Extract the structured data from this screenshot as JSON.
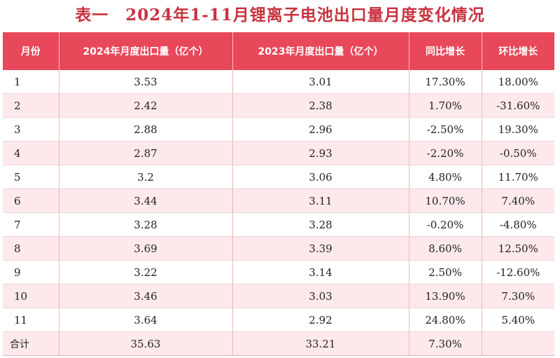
{
  "chart_data": {
    "type": "table",
    "title": "表一　2024年1-11月锂离子电池出口量月度变化情况",
    "columns": [
      "月份",
      "2024年月度出口量（亿个）",
      "2023年月度出口量（亿个）",
      "同比增长",
      "环比增长"
    ],
    "rows": [
      [
        "1",
        "3.53",
        "3.01",
        "17.30%",
        "18.00%"
      ],
      [
        "2",
        "2.42",
        "2.38",
        "1.70%",
        "-31.60%"
      ],
      [
        "3",
        "2.88",
        "2.96",
        "-2.50%",
        "19.30%"
      ],
      [
        "4",
        "2.87",
        "2.93",
        "-2.20%",
        "-0.50%"
      ],
      [
        "5",
        "3.2",
        "3.06",
        "4.80%",
        "11.70%"
      ],
      [
        "6",
        "3.44",
        "3.11",
        "10.70%",
        "7.40%"
      ],
      [
        "7",
        "3.28",
        "3.28",
        "-0.20%",
        "-4.80%"
      ],
      [
        "8",
        "3.69",
        "3.39",
        "8.60%",
        "12.50%"
      ],
      [
        "9",
        "3.22",
        "3.14",
        "2.50%",
        "-12.60%"
      ],
      [
        "10",
        "3.46",
        "3.03",
        "13.90%",
        "7.30%"
      ],
      [
        "11",
        "3.64",
        "2.92",
        "24.80%",
        "5.40%"
      ],
      [
        "合计",
        "35.63",
        "33.21",
        "7.30%",
        ""
      ]
    ],
    "colors": {
      "header_bg": "#e8485a",
      "title": "#c8323f",
      "stripe": "#fde9eb"
    }
  }
}
